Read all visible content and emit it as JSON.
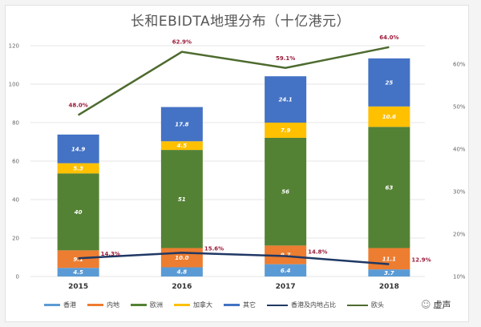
{
  "chart_data": {
    "type": "bar",
    "stacked": true,
    "title": "长和EBIDTA地理分布（十亿港元）",
    "categories": [
      "2015",
      "2016",
      "2017",
      "2018"
    ],
    "series": [
      {
        "name": "香港",
        "color": "#5b9bd5",
        "values": [
          4.5,
          4.8,
          6.4,
          3.7
        ],
        "labels": [
          "4.5",
          "4.8",
          "6.4",
          "3.7"
        ]
      },
      {
        "name": "内地",
        "color": "#ed7d31",
        "values": [
          9.1,
          10.0,
          9.7,
          11.1
        ],
        "labels": [
          "9.1",
          "10.0",
          "9.7",
          "11.1"
        ]
      },
      {
        "name": "欧洲",
        "color": "#548235",
        "values": [
          40,
          51,
          56,
          63
        ],
        "labels": [
          "40",
          "51",
          "56",
          "63"
        ]
      },
      {
        "name": "加拿大",
        "color": "#ffc000",
        "values": [
          5.3,
          4.5,
          7.9,
          10.6
        ],
        "labels": [
          "5.3",
          "4.5",
          "7.9",
          "10.6"
        ]
      },
      {
        "name": "其它",
        "color": "#4472c4",
        "values": [
          14.9,
          17.8,
          24.1,
          25
        ],
        "labels": [
          "14.9",
          "17.8",
          "24.1",
          "25"
        ]
      }
    ],
    "line_series": [
      {
        "name": "香港及内地占比",
        "color": "#203864",
        "axis": "right",
        "values": [
          14.3,
          15.6,
          14.8,
          12.9
        ],
        "labels": [
          "14.3%",
          "15.6%",
          "14.8%",
          "12.9%"
        ]
      },
      {
        "name": "欧洲占比",
        "color": "#4e6b2f",
        "axis": "right",
        "values": [
          48.0,
          62.9,
          59.1,
          64.0
        ],
        "labels": [
          "48.0%",
          "62.9%",
          "59.1%",
          "64.0%"
        ]
      }
    ],
    "ylim": [
      0,
      120
    ],
    "yticks": [
      "0",
      "20",
      "40",
      "60",
      "80",
      "100",
      "120"
    ],
    "y2lim": [
      10,
      65
    ],
    "y2ticks": [
      "10%",
      "20%",
      "30%",
      "40%",
      "50%",
      "60%"
    ],
    "grid": true,
    "legend_position": "bottom",
    "legend": [
      "香港",
      "内地",
      "欧洲",
      "加拿大",
      "其它",
      "香港及内地占比",
      "欧洲占比"
    ],
    "legend_visible_text": [
      "香港",
      "内地",
      "欧洲",
      "加拿大",
      "其它",
      "香港及内地占比",
      "欧头"
    ]
  },
  "watermark": {
    "text": "虚声",
    "icon": "smiley-icon"
  }
}
